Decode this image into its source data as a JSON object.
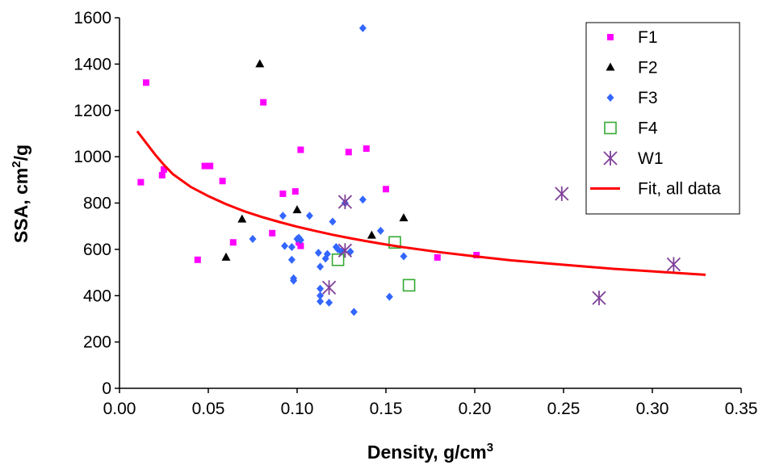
{
  "chart_data": {
    "type": "scatter",
    "xlabel_main": "Density, g/cm",
    "xlabel_sup": "3",
    "ylabel_main": "SSA, cm",
    "ylabel_sup": "2",
    "ylabel_tail": "/g",
    "xlim": [
      0,
      0.35
    ],
    "ylim": [
      0,
      1600
    ],
    "x_ticks": [
      0.0,
      0.05,
      0.1,
      0.15,
      0.2,
      0.25,
      0.3,
      0.35
    ],
    "x_tick_labels": [
      "0.00",
      "0.05",
      "0.10",
      "0.15",
      "0.20",
      "0.25",
      "0.30",
      "0.35"
    ],
    "y_ticks": [
      0,
      200,
      400,
      600,
      800,
      1000,
      1200,
      1400,
      1600
    ],
    "y_tick_labels": [
      "0",
      "200",
      "400",
      "600",
      "800",
      "1000",
      "1200",
      "1400",
      "1600"
    ],
    "grid": false,
    "legend_position": "top-right",
    "series": [
      {
        "name": "F1",
        "marker": "square",
        "color": "#FF00FF",
        "points": [
          [
            0.012,
            890
          ],
          [
            0.015,
            1320
          ],
          [
            0.024,
            920
          ],
          [
            0.025,
            945
          ],
          [
            0.044,
            555
          ],
          [
            0.048,
            960
          ],
          [
            0.051,
            960
          ],
          [
            0.058,
            895
          ],
          [
            0.064,
            630
          ],
          [
            0.081,
            1235
          ],
          [
            0.086,
            670
          ],
          [
            0.092,
            840
          ],
          [
            0.099,
            850
          ],
          [
            0.101,
            630
          ],
          [
            0.102,
            615
          ],
          [
            0.102,
            1030
          ],
          [
            0.129,
            1020
          ],
          [
            0.139,
            1035
          ],
          [
            0.15,
            860
          ],
          [
            0.179,
            565
          ],
          [
            0.201,
            575
          ]
        ]
      },
      {
        "name": "F2",
        "marker": "triangle",
        "color": "#000000",
        "points": [
          [
            0.06,
            565
          ],
          [
            0.069,
            730
          ],
          [
            0.079,
            1400
          ],
          [
            0.1,
            770
          ],
          [
            0.142,
            660
          ],
          [
            0.16,
            735
          ]
        ]
      },
      {
        "name": "F3",
        "marker": "diamond",
        "color": "#3366FF",
        "points": [
          [
            0.075,
            645
          ],
          [
            0.092,
            745
          ],
          [
            0.093,
            615
          ],
          [
            0.097,
            610
          ],
          [
            0.097,
            555
          ],
          [
            0.098,
            475
          ],
          [
            0.098,
            465
          ],
          [
            0.1,
            645
          ],
          [
            0.101,
            650
          ],
          [
            0.102,
            640
          ],
          [
            0.107,
            745
          ],
          [
            0.112,
            585
          ],
          [
            0.113,
            525
          ],
          [
            0.113,
            430
          ],
          [
            0.113,
            400
          ],
          [
            0.113,
            375
          ],
          [
            0.116,
            560
          ],
          [
            0.117,
            580
          ],
          [
            0.118,
            370
          ],
          [
            0.12,
            720
          ],
          [
            0.122,
            610
          ],
          [
            0.123,
            600
          ],
          [
            0.125,
            590
          ],
          [
            0.127,
            800
          ],
          [
            0.13,
            590
          ],
          [
            0.132,
            330
          ],
          [
            0.137,
            815
          ],
          [
            0.137,
            1555
          ],
          [
            0.147,
            680
          ],
          [
            0.152,
            395
          ],
          [
            0.16,
            570
          ]
        ]
      },
      {
        "name": "F4",
        "marker": "open-square",
        "color": "#33AA33",
        "points": [
          [
            0.123,
            555
          ],
          [
            0.155,
            630
          ],
          [
            0.163,
            445
          ]
        ]
      },
      {
        "name": "W1",
        "marker": "asterisk",
        "color": "#7F3F98",
        "points": [
          [
            0.118,
            435
          ],
          [
            0.127,
            805
          ],
          [
            0.127,
            595
          ],
          [
            0.249,
            840
          ],
          [
            0.27,
            390
          ],
          [
            0.312,
            535
          ]
        ]
      },
      {
        "name": "Fit, all data",
        "marker": "line",
        "color": "#FF0000",
        "points": [
          [
            0.01,
            1110
          ],
          [
            0.015,
            1060
          ],
          [
            0.02,
            1010
          ],
          [
            0.025,
            965
          ],
          [
            0.03,
            925
          ],
          [
            0.04,
            870
          ],
          [
            0.05,
            830
          ],
          [
            0.06,
            795
          ],
          [
            0.07,
            765
          ],
          [
            0.08,
            740
          ],
          [
            0.09,
            718
          ],
          [
            0.1,
            698
          ],
          [
            0.11,
            680
          ],
          [
            0.12,
            663
          ],
          [
            0.13,
            648
          ],
          [
            0.14,
            634
          ],
          [
            0.15,
            621
          ],
          [
            0.16,
            609
          ],
          [
            0.18,
            588
          ],
          [
            0.2,
            570
          ],
          [
            0.22,
            553
          ],
          [
            0.24,
            540
          ],
          [
            0.26,
            527
          ],
          [
            0.28,
            515
          ],
          [
            0.3,
            505
          ],
          [
            0.32,
            495
          ],
          [
            0.33,
            490
          ]
        ]
      }
    ]
  }
}
